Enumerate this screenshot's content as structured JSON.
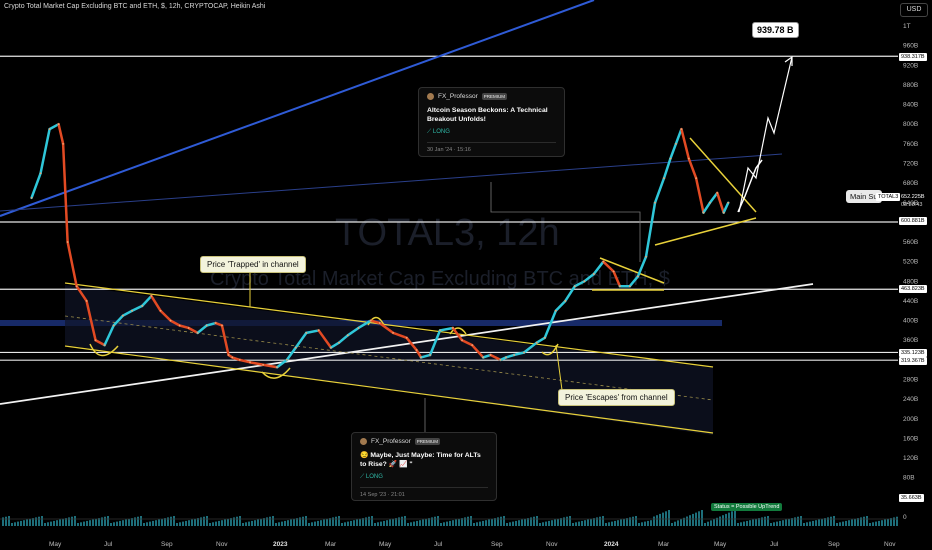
{
  "header": {
    "title": "Crypto Total Market Cap Excluding BTC and ETH, $, 12h, CRYPTOCAP, Heikin Ashi",
    "currency": "USD"
  },
  "watermark": {
    "line1": "TOTAL3, 12h",
    "line2": "Crypto Total Market Cap Excluding BTC and ETH, $"
  },
  "y_axis": {
    "ticks": [
      "1T",
      "960B",
      "920B",
      "880B",
      "840B",
      "800B",
      "760B",
      "720B",
      "680B",
      "640B",
      "560B",
      "520B",
      "480B",
      "440B",
      "400B",
      "360B",
      "280B",
      "240B",
      "200B",
      "160B",
      "120B",
      "80B",
      "40B",
      "0"
    ]
  },
  "x_axis": {
    "ticks": [
      "May",
      "Jul",
      "Sep",
      "Nov",
      "2023",
      "Mar",
      "May",
      "Jul",
      "Sep",
      "Nov",
      "2024",
      "Mar",
      "May",
      "Jul",
      "Sep",
      "Nov"
    ]
  },
  "price_tags": {
    "target": "938.317B",
    "current_symbol": "TOTAL3",
    "current_price": "652.225B",
    "countdown": "08:28:43",
    "support_main": "600.881B",
    "level_463": "463.823B",
    "level_335": "335.123B",
    "level_319": "319.367B",
    "volume": "35.663B"
  },
  "annotations": {
    "target_box": "939.78 B",
    "main_support": "Main Su",
    "trapped": "Price 'Trapped' in channel",
    "escapes": "Price 'Escapes' from channel",
    "status": "Status = Possible UpTrend"
  },
  "idea_top": {
    "author": "FX_Professor",
    "badge": "PREMIUM",
    "title": "Altcoin Season Beckons: A Technical Breakout Unfolds!",
    "direction": "LONG",
    "date": "30 Jan '24 · 15:16"
  },
  "idea_bottom": {
    "author": "FX_Professor",
    "badge": "PREMIUM",
    "title": "😏 Maybe, Just Maybe: Time for ALTs to Rise? 🚀 📈 \"",
    "direction": "LONG",
    "date": "14 Sep '23 · 21:01"
  },
  "chart_data": {
    "type": "line",
    "ylim": [
      0,
      1000
    ],
    "unit": "B",
    "series": [
      {
        "x": [
          "2022-04-05",
          "2022-04-15",
          "2022-04-25",
          "2022-05-05",
          "2022-05-10",
          "2022-05-15",
          "2022-05-25",
          "2022-06-05",
          "2022-06-15",
          "2022-06-25",
          "2022-07-05",
          "2022-07-15",
          "2022-07-25",
          "2022-08-05",
          "2022-08-15",
          "2022-08-25",
          "2022-09-05",
          "2022-09-15",
          "2022-09-25",
          "2022-10-05",
          "2022-10-15",
          "2022-10-25",
          "2022-11-01",
          "2022-11-08",
          "2022-11-12",
          "2022-11-20",
          "2022-12-01",
          "2022-12-15",
          "2022-12-30",
          "2023-01-10",
          "2023-01-20",
          "2023-02-01",
          "2023-02-15",
          "2023-03-01",
          "2023-03-10",
          "2023-03-20",
          "2023-04-01",
          "2023-04-15",
          "2023-04-25",
          "2023-05-10",
          "2023-05-25",
          "2023-06-05",
          "2023-06-10",
          "2023-06-20",
          "2023-07-01",
          "2023-07-15",
          "2023-07-25",
          "2023-08-05",
          "2023-08-17",
          "2023-08-25",
          "2023-09-05",
          "2023-09-11",
          "2023-09-20",
          "2023-10-01",
          "2023-10-15",
          "2023-10-24",
          "2023-11-05",
          "2023-11-15",
          "2023-11-25",
          "2023-12-05",
          "2023-12-15",
          "2023-12-25",
          "2024-01-05",
          "2024-01-12",
          "2024-01-23",
          "2024-02-01",
          "2024-02-10",
          "2024-02-20",
          "2024-03-01",
          "2024-03-08",
          "2024-03-14",
          "2024-03-20",
          "2024-03-28",
          "2024-04-05",
          "2024-04-13",
          "2024-04-20",
          "2024-04-28",
          "2024-05-05",
          "2024-05-10"
        ],
        "y": [
          650,
          700,
          790,
          800,
          760,
          560,
          470,
          440,
          360,
          350,
          390,
          410,
          420,
          430,
          450,
          420,
          400,
          390,
          385,
          375,
          390,
          395,
          390,
          330,
          325,
          320,
          315,
          310,
          305,
          320,
          345,
          375,
          380,
          345,
          355,
          370,
          385,
          400,
          395,
          375,
          365,
          340,
          325,
          330,
          380,
          385,
          360,
          350,
          325,
          330,
          320,
          325,
          330,
          335,
          355,
          365,
          420,
          440,
          470,
          480,
          495,
          520,
          500,
          470,
          470,
          490,
          530,
          640,
          690,
          730,
          760,
          790,
          730,
          690,
          620,
          640,
          660,
          620,
          640
        ]
      }
    ],
    "levels": [
      938.317,
      600.881,
      463.823,
      335.123,
      319.367
    ],
    "target": 939.78
  }
}
